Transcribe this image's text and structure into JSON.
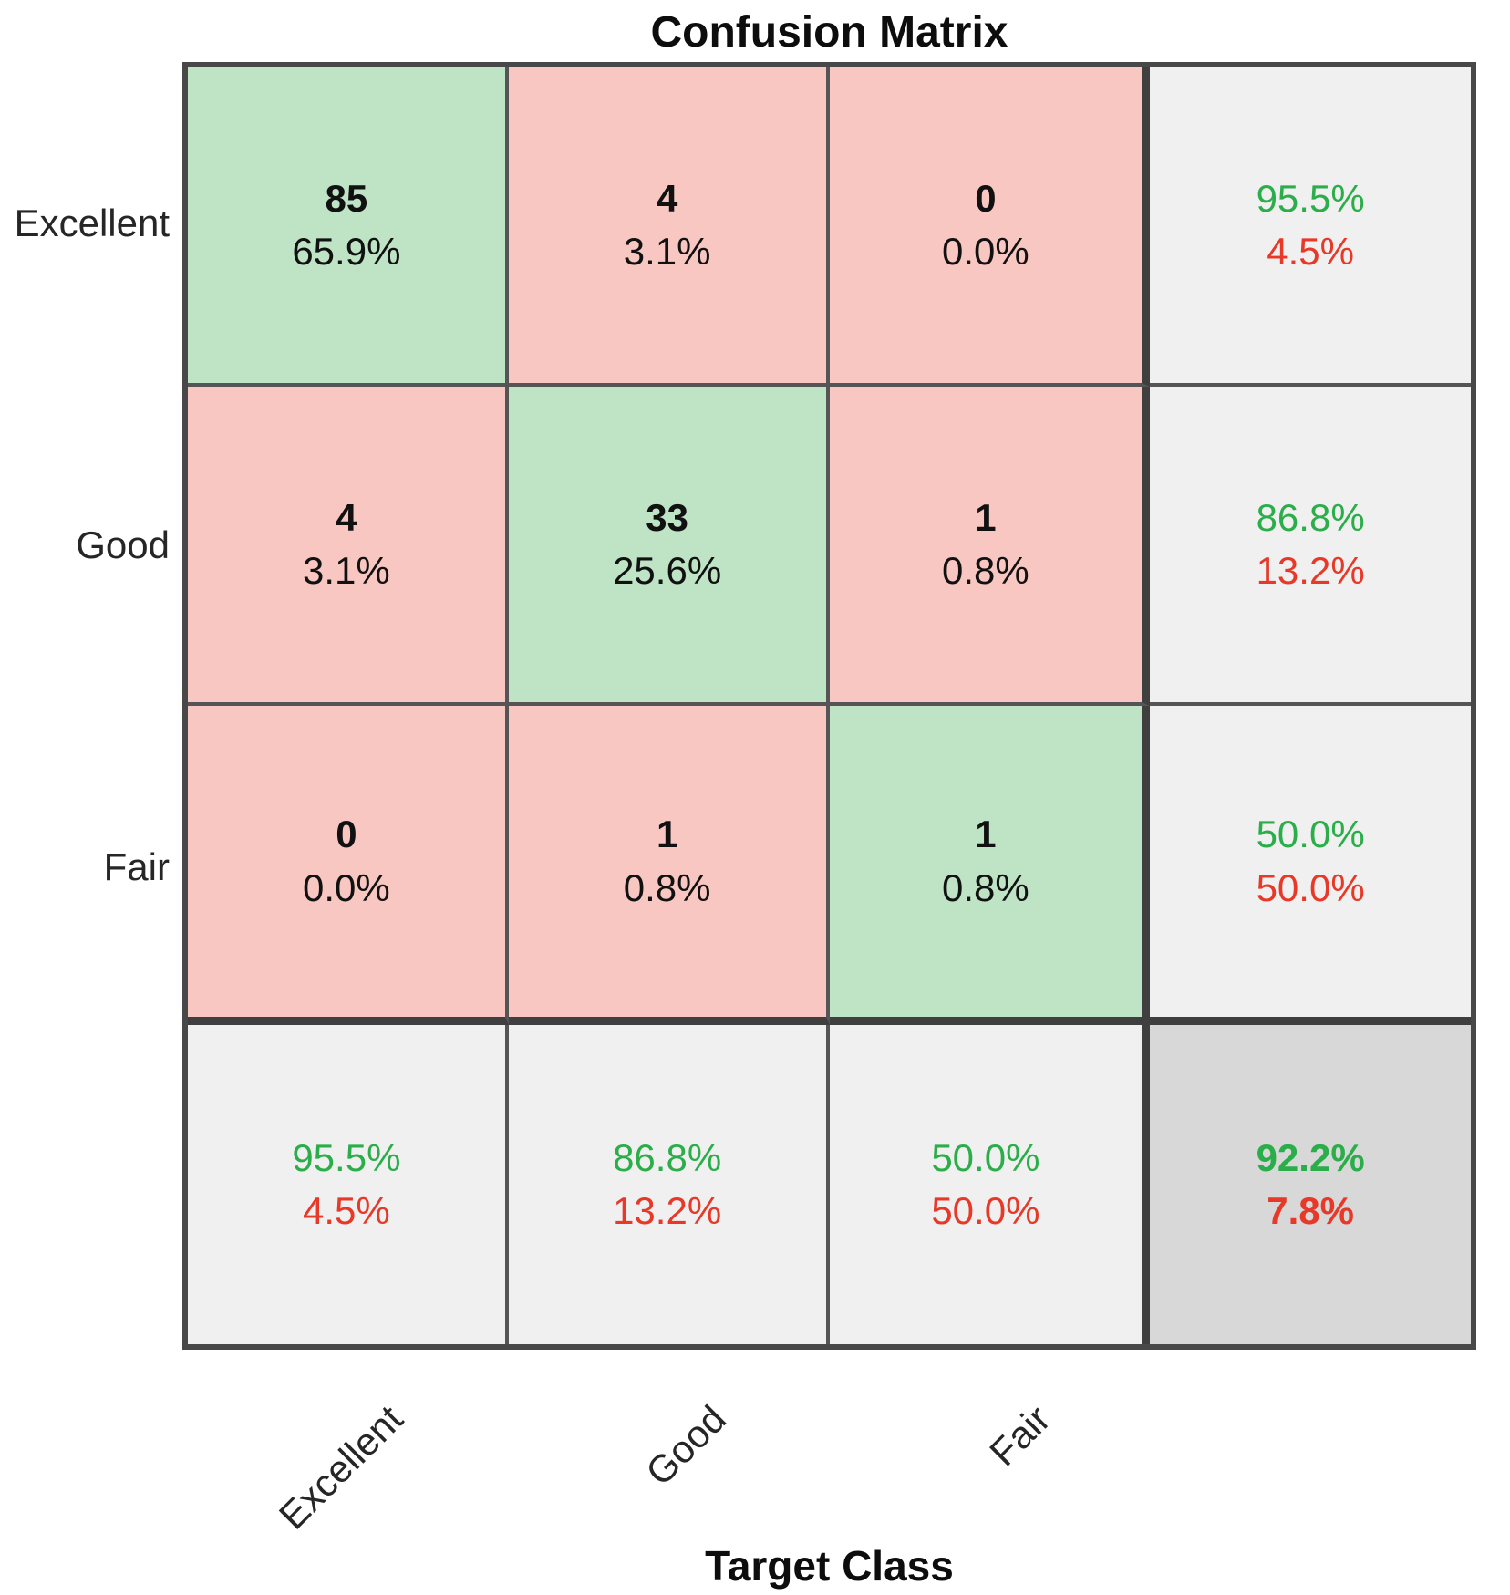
{
  "title": "Confusion Matrix",
  "axis": {
    "x_label": "Target Class",
    "x_ticks": [
      "Excellent",
      "Good",
      "Fair"
    ],
    "y_ticks": [
      "Excellent",
      "Good",
      "Fair"
    ]
  },
  "matrix": {
    "rows": [
      {
        "label": "Excellent",
        "cells": [
          {
            "line1": "85",
            "line2": "65.9%"
          },
          {
            "line1": "4",
            "line2": "3.1%"
          },
          {
            "line1": "0",
            "line2": "0.0%"
          },
          {
            "line1": "95.5%",
            "line2": "4.5%"
          }
        ]
      },
      {
        "label": "Good",
        "cells": [
          {
            "line1": "4",
            "line2": "3.1%"
          },
          {
            "line1": "33",
            "line2": "25.6%"
          },
          {
            "line1": "1",
            "line2": "0.8%"
          },
          {
            "line1": "86.8%",
            "line2": "13.2%"
          }
        ]
      },
      {
        "label": "Fair",
        "cells": [
          {
            "line1": "0",
            "line2": "0.0%"
          },
          {
            "line1": "1",
            "line2": "0.8%"
          },
          {
            "line1": "1",
            "line2": "0.8%"
          },
          {
            "line1": "50.0%",
            "line2": "50.0%"
          }
        ]
      },
      {
        "label": "",
        "cells": [
          {
            "line1": "95.5%",
            "line2": "4.5%"
          },
          {
            "line1": "86.8%",
            "line2": "13.2%"
          },
          {
            "line1": "50.0%",
            "line2": "50.0%"
          },
          {
            "line1": "92.2%",
            "line2": "7.8%"
          }
        ]
      }
    ]
  },
  "colors": {
    "diagonal_cell": "#bee3c5",
    "off_diagonal_cell": "#f9c7c1",
    "summary_cell": "#f0f0f0",
    "total_cell": "#d8d8d8",
    "good_text": "#2bae4a",
    "bad_text": "#e83828",
    "grid_line": "#555555",
    "heavy_line": "#3f3f3f"
  },
  "chart_data": {
    "type": "heatmap",
    "title": "Confusion Matrix",
    "xlabel": "Target Class",
    "ylabel": "",
    "classes": [
      "Excellent",
      "Good",
      "Fair"
    ],
    "counts": [
      [
        85,
        4,
        0
      ],
      [
        4,
        33,
        1
      ],
      [
        0,
        1,
        1
      ]
    ],
    "percent_of_total": [
      [
        "65.9%",
        "3.1%",
        "0.0%"
      ],
      [
        "3.1%",
        "25.6%",
        "0.8%"
      ],
      [
        "0.0%",
        "0.8%",
        "0.8%"
      ]
    ],
    "row_summary_correct_incorrect": [
      [
        "95.5%",
        "4.5%"
      ],
      [
        "86.8%",
        "13.2%"
      ],
      [
        "50.0%",
        "50.0%"
      ]
    ],
    "column_summary_correct_incorrect": [
      [
        "95.5%",
        "4.5%"
      ],
      [
        "86.8%",
        "13.2%"
      ],
      [
        "50.0%",
        "50.0%"
      ]
    ],
    "overall_accuracy_error": [
      "92.2%",
      "7.8%"
    ],
    "legend_position": "none",
    "grid": true
  }
}
